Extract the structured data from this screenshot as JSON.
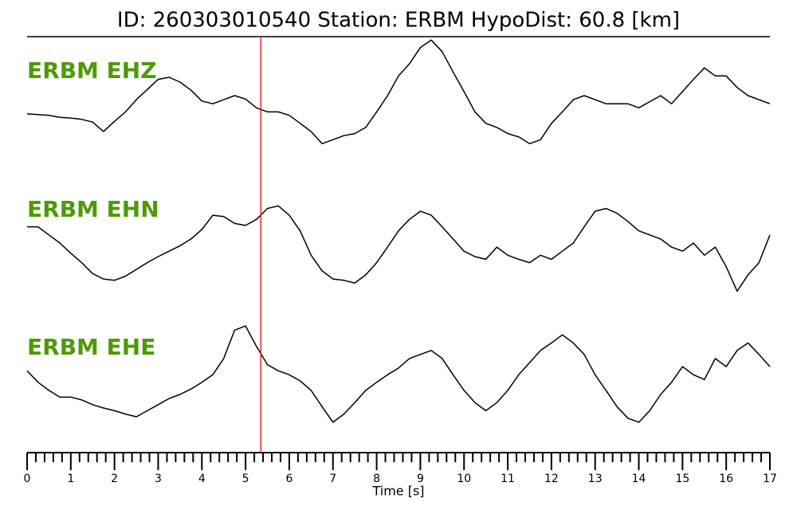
{
  "chart_data": {
    "type": "line",
    "title": "ID: 260303010540   Station: ERBM   HypoDist:    60.8 [km]",
    "xlabel": "Time [s]",
    "xlim": [
      0,
      17
    ],
    "xticks": [
      0,
      1,
      2,
      3,
      4,
      5,
      6,
      7,
      8,
      9,
      10,
      11,
      12,
      13,
      14,
      15,
      16,
      17
    ],
    "xminorticks": [
      0.2,
      0.4,
      0.6,
      0.8,
      1.2,
      1.4,
      1.6,
      1.8,
      2.2,
      2.4,
      2.6,
      2.8,
      3.2,
      3.4,
      3.6,
      3.8,
      4.2,
      4.4,
      4.6,
      4.8,
      5.2,
      5.4,
      5.6,
      5.8,
      6.2,
      6.4,
      6.6,
      6.8,
      7.2,
      7.4,
      7.6,
      7.8,
      8.2,
      8.4,
      8.6,
      8.8,
      9.2,
      9.4,
      9.6,
      9.8,
      10.2,
      10.4,
      10.6,
      10.8,
      11.2,
      11.4,
      11.6,
      11.8,
      12.2,
      12.4,
      12.6,
      12.8,
      13.2,
      13.4,
      13.6,
      13.8,
      14.2,
      14.4,
      14.6,
      14.8,
      15.2,
      15.4,
      15.6,
      15.8,
      16.2,
      16.4,
      16.6,
      16.8
    ],
    "ylim": [
      -1,
      1
    ],
    "pick_x": 5.35,
    "pick_color": "#e8222a",
    "label_color": "#4e9a06",
    "x": [
      0,
      0.25,
      0.5,
      0.75,
      1,
      1.25,
      1.5,
      1.75,
      2,
      2.25,
      2.5,
      2.75,
      3,
      3.25,
      3.5,
      3.75,
      4,
      4.25,
      4.5,
      4.75,
      5,
      5.25,
      5.5,
      5.75,
      6,
      6.25,
      6.5,
      6.75,
      7,
      7.25,
      7.5,
      7.75,
      8,
      8.25,
      8.5,
      8.75,
      9,
      9.25,
      9.5,
      9.75,
      10,
      10.25,
      10.5,
      10.75,
      11,
      11.25,
      11.5,
      11.75,
      12,
      12.25,
      12.5,
      12.75,
      13,
      13.25,
      13.5,
      13.75,
      14,
      14.25,
      14.5,
      14.75,
      15,
      15.25,
      15.5,
      15.75,
      16,
      16.25,
      16.5,
      16.75,
      17
    ],
    "series": [
      {
        "name": "ERBM EHZ",
        "color": "#000000",
        "values": [
          -0.27,
          -0.28,
          -0.29,
          -0.32,
          -0.33,
          -0.35,
          -0.39,
          -0.53,
          -0.38,
          -0.24,
          -0.06,
          0.09,
          0.24,
          0.27,
          0.2,
          0.08,
          -0.08,
          -0.12,
          -0.06,
          0,
          -0.05,
          -0.18,
          -0.24,
          -0.24,
          -0.29,
          -0.41,
          -0.53,
          -0.71,
          -0.65,
          -0.59,
          -0.56,
          -0.47,
          -0.24,
          0,
          0.29,
          0.47,
          0.71,
          0.82,
          0.65,
          0.35,
          0.06,
          -0.24,
          -0.41,
          -0.47,
          -0.56,
          -0.61,
          -0.71,
          -0.65,
          -0.41,
          -0.24,
          -0.06,
          0,
          -0.06,
          -0.12,
          -0.12,
          -0.12,
          -0.18,
          -0.09,
          0,
          -0.12,
          0.06,
          0.24,
          0.41,
          0.29,
          0.29,
          0.12,
          0,
          -0.06,
          -0.12
        ]
      },
      {
        "name": "ERBM EHN",
        "color": "#000000",
        "values": [
          0.24,
          0.24,
          0.12,
          0,
          -0.15,
          -0.29,
          -0.45,
          -0.53,
          -0.55,
          -0.49,
          -0.39,
          -0.29,
          -0.2,
          -0.12,
          -0.04,
          0.06,
          0.2,
          0.41,
          0.39,
          0.29,
          0.26,
          0.35,
          0.51,
          0.55,
          0.41,
          0.18,
          -0.18,
          -0.41,
          -0.53,
          -0.55,
          -0.59,
          -0.47,
          -0.29,
          -0.06,
          0.18,
          0.35,
          0.47,
          0.41,
          0.24,
          0.06,
          -0.12,
          -0.2,
          -0.24,
          -0.06,
          -0.18,
          -0.24,
          -0.29,
          -0.18,
          -0.24,
          -0.12,
          0,
          0.24,
          0.47,
          0.51,
          0.44,
          0.32,
          0.18,
          0.12,
          0.06,
          -0.06,
          -0.12,
          0,
          -0.18,
          -0.06,
          -0.35,
          -0.71,
          -0.47,
          -0.29,
          0.12
        ]
      },
      {
        "name": "ERBM EHE",
        "color": "#000000",
        "values": [
          0.15,
          -0.02,
          -0.14,
          -0.24,
          -0.24,
          -0.28,
          -0.35,
          -0.4,
          -0.44,
          -0.49,
          -0.53,
          -0.44,
          -0.35,
          -0.26,
          -0.2,
          -0.12,
          -0.02,
          0.09,
          0.33,
          0.75,
          0.81,
          0.51,
          0.24,
          0.15,
          0.09,
          0,
          -0.14,
          -0.38,
          -0.61,
          -0.49,
          -0.32,
          -0.14,
          -0.02,
          0.09,
          0.19,
          0.33,
          0.39,
          0.45,
          0.33,
          0.09,
          -0.14,
          -0.32,
          -0.44,
          -0.32,
          -0.14,
          0.09,
          0.27,
          0.45,
          0.56,
          0.68,
          0.56,
          0.39,
          0.09,
          -0.14,
          -0.38,
          -0.55,
          -0.61,
          -0.44,
          -0.2,
          -0.02,
          0.21,
          0.09,
          0.02,
          0.33,
          0.21,
          0.45,
          0.56,
          0.39,
          0.21
        ]
      }
    ]
  }
}
